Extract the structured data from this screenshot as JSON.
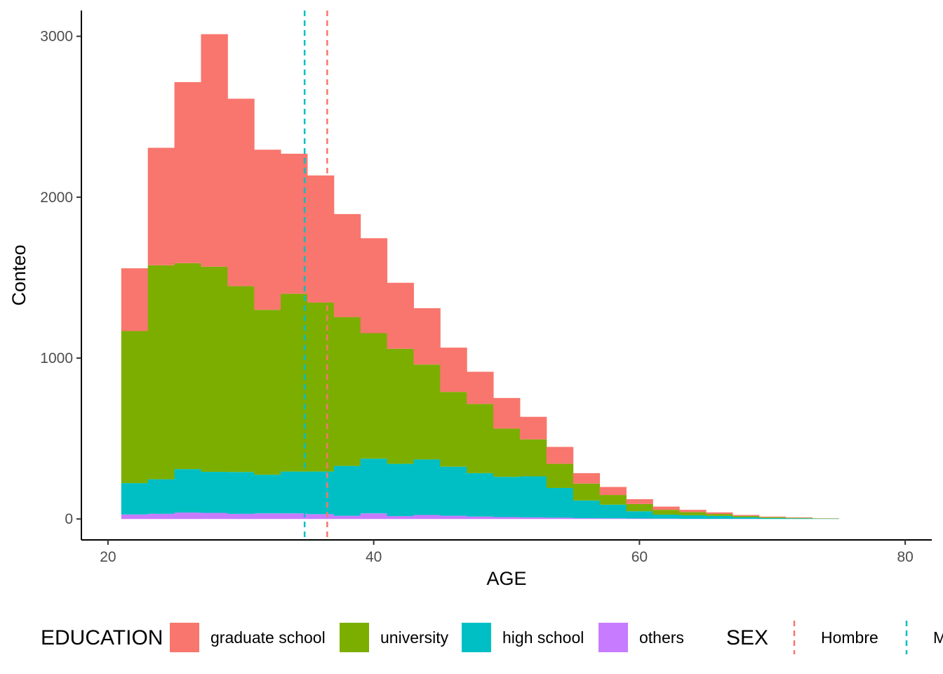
{
  "chart_data": {
    "type": "bar",
    "title": "",
    "xlabel": "AGE",
    "ylabel": "Conteo",
    "xlim": [
      18,
      82
    ],
    "ylim": [
      -130,
      3160
    ],
    "x_ticks": [
      20,
      40,
      60,
      80
    ],
    "y_ticks": [
      0,
      1000,
      2000,
      3000
    ],
    "bin_width": 2,
    "bin_starts": [
      21,
      23,
      25,
      27,
      29,
      31,
      33,
      35,
      37,
      39,
      41,
      43,
      45,
      47,
      49,
      51,
      53,
      55,
      57,
      59,
      61,
      63,
      65,
      67,
      69,
      71,
      73
    ],
    "series": [
      {
        "name": "graduate school",
        "color": "#F8766D",
        "values": [
          390,
          730,
          1125,
          1445,
          1165,
          995,
          870,
          790,
          640,
          590,
          410,
          350,
          275,
          200,
          190,
          140,
          105,
          65,
          50,
          30,
          20,
          14,
          10,
          6,
          4,
          3,
          1
        ]
      },
      {
        "name": "university",
        "color": "#7CAE00",
        "values": [
          945,
          1330,
          1280,
          1275,
          1155,
          1025,
          1105,
          1050,
          925,
          780,
          715,
          590,
          465,
          430,
          300,
          230,
          150,
          105,
          60,
          45,
          30,
          20,
          12,
          8,
          5,
          3,
          2
        ]
      },
      {
        "name": "high school",
        "color": "#00BFC4",
        "values": [
          195,
          215,
          270,
          255,
          260,
          240,
          260,
          265,
          310,
          340,
          325,
          345,
          305,
          270,
          250,
          255,
          185,
          110,
          85,
          45,
          25,
          22,
          18,
          10,
          6,
          4,
          2
        ]
      },
      {
        "name": "others",
        "color": "#C77CFF",
        "values": [
          28,
          32,
          40,
          38,
          32,
          35,
          35,
          30,
          20,
          35,
          18,
          25,
          20,
          15,
          12,
          10,
          8,
          5,
          4,
          3,
          2,
          1,
          1,
          1,
          0,
          0,
          0
        ]
      }
    ],
    "vlines": [
      {
        "name": "Hombre",
        "x": 36.5,
        "color": "#F8766D",
        "style": "dashed"
      },
      {
        "name": "M",
        "x": 34.8,
        "color": "#00BFC4",
        "style": "dashed"
      }
    ],
    "grid": false,
    "legend_position": "bottom"
  },
  "legend": {
    "education_title": "EDUCATION",
    "sex_title": "SEX",
    "education_items": [
      "graduate school",
      "university",
      "high school",
      "others"
    ],
    "sex_items": [
      "Hombre",
      "M"
    ]
  },
  "colors": {
    "graduate_school": "#F8766D",
    "university": "#7CAE00",
    "high_school": "#00BFC4",
    "others": "#C77CFF"
  }
}
